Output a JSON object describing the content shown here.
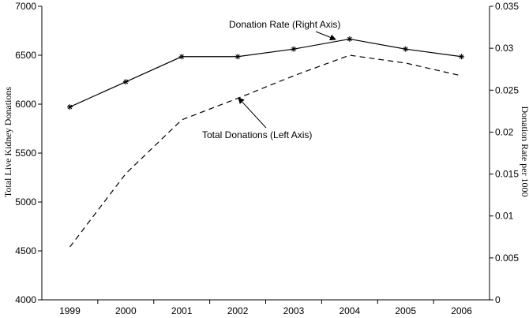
{
  "chart_data": {
    "type": "line",
    "x": [
      "1999",
      "2000",
      "2001",
      "2002",
      "2003",
      "2004",
      "2005",
      "2006"
    ],
    "y_left_label": "Total Live Kidney Donations",
    "y_left_lim": [
      4000,
      7000
    ],
    "y_left_ticks": [
      "4000",
      "4500",
      "5000",
      "5500",
      "6000",
      "6500",
      "7000"
    ],
    "y_right_label": "Donation Rate per 1000",
    "y_right_lim": [
      0,
      0.035
    ],
    "y_right_ticks": [
      "0",
      "0.005",
      "0.01",
      "0.015",
      "0.02",
      "0.025",
      "0.03",
      "0.035"
    ],
    "grid": false,
    "legend": "none",
    "series": [
      {
        "axis": "right",
        "style": "solid-asterisk",
        "values": [
          0.023,
          0.026,
          0.029,
          0.029,
          0.0299,
          0.0311,
          0.0299,
          0.029
        ]
      },
      {
        "axis": "left",
        "style": "dashed",
        "values": [
          4540,
          5290,
          5840,
          6060,
          6290,
          6500,
          6420,
          6290
        ]
      }
    ],
    "annotations": [
      {
        "text": "Donation Rate (Right Axis)",
        "points_to": "Donation Rate series near 2004"
      },
      {
        "text": "Total Donations (Left Axis)",
        "points_to": "Total Donations series near 2002"
      }
    ]
  }
}
